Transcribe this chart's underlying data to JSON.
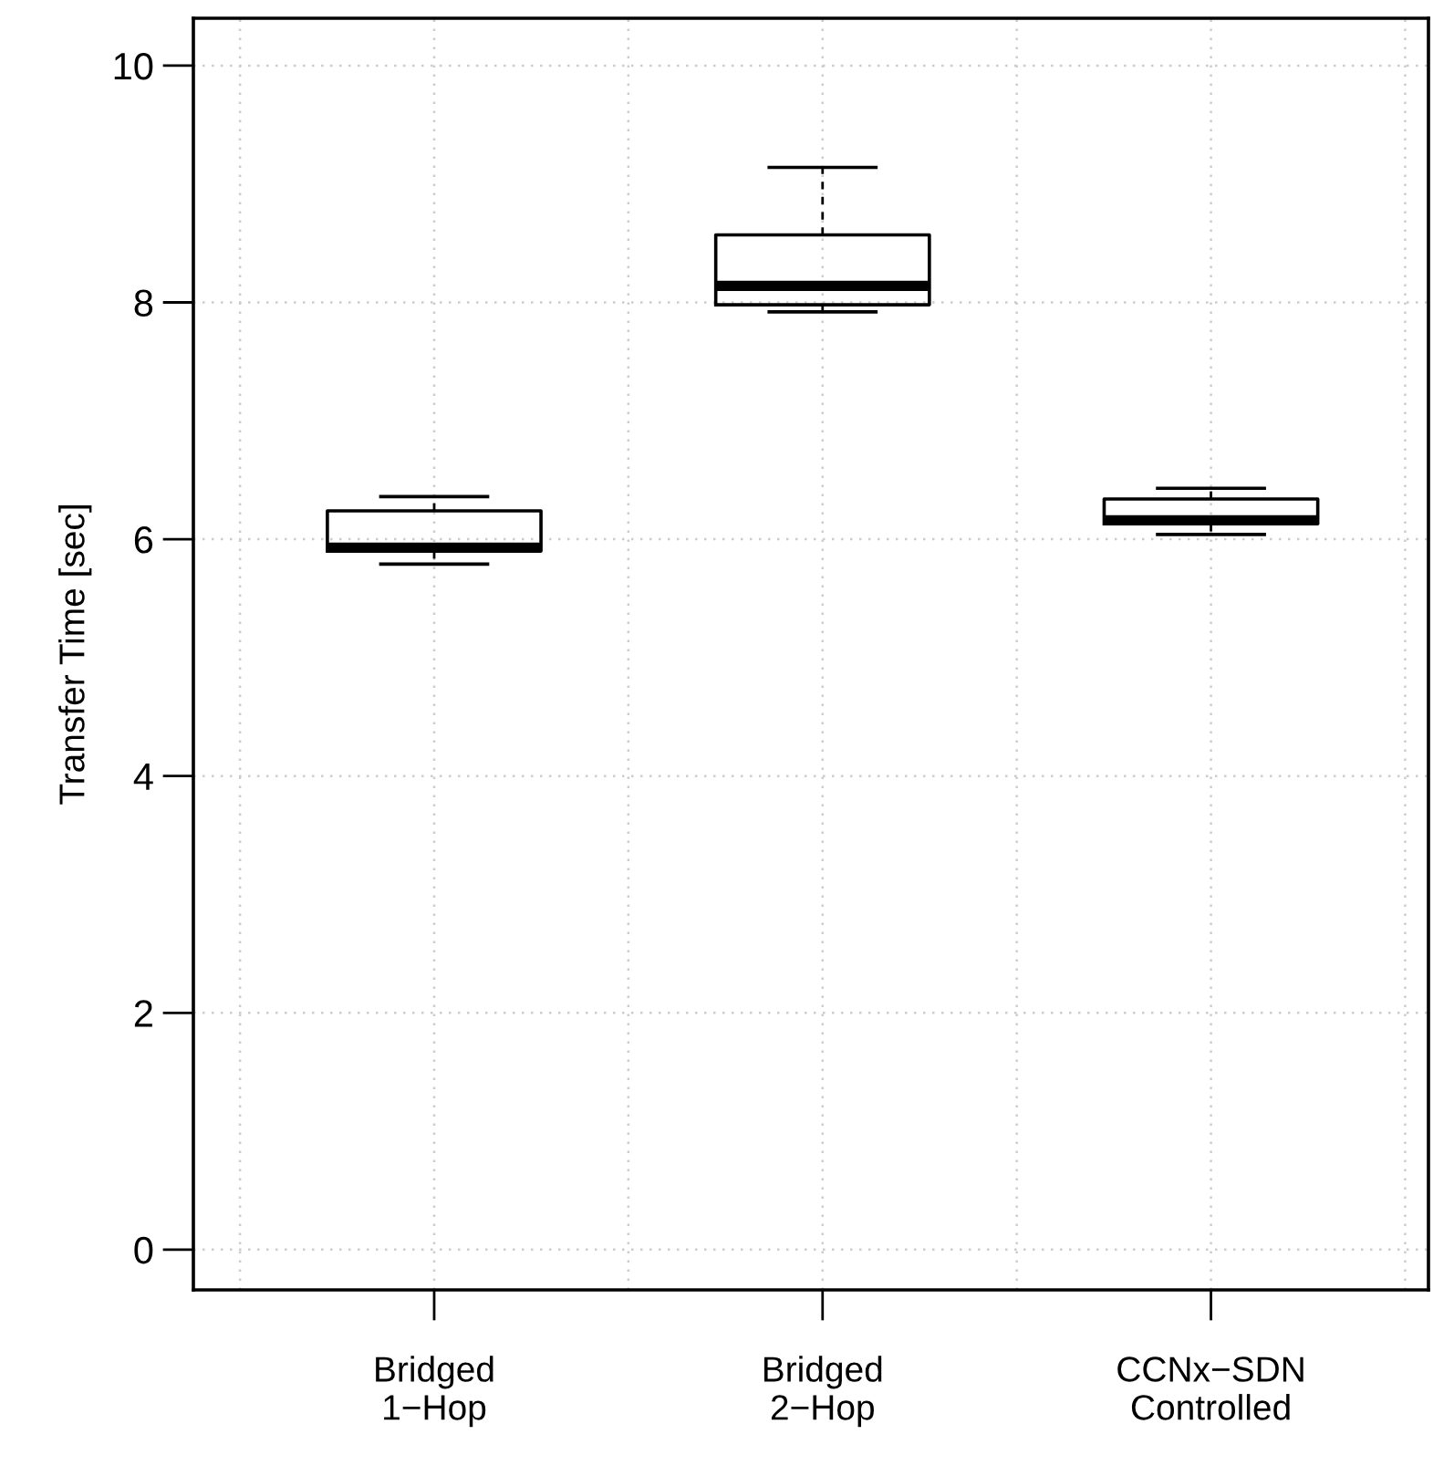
{
  "chart_data": {
    "type": "box",
    "ylabel": "Transfer Time [sec]",
    "categories": [
      "Bridged\n1−Hop",
      "Bridged\n2−Hop",
      "CCNx−SDN\nControlled"
    ],
    "boxes": [
      {
        "low": 5.79,
        "q1": 5.9,
        "median": 5.93,
        "q3": 6.24,
        "high": 6.36
      },
      {
        "low": 7.92,
        "q1": 7.98,
        "median": 8.14,
        "q3": 8.57,
        "high": 9.14
      },
      {
        "low": 6.04,
        "q1": 6.13,
        "median": 6.16,
        "q3": 6.34,
        "high": 6.43
      }
    ],
    "ylim": [
      -0.34,
      10.4
    ],
    "yticks": [
      0,
      2,
      4,
      6,
      8,
      10
    ],
    "grid": true
  }
}
